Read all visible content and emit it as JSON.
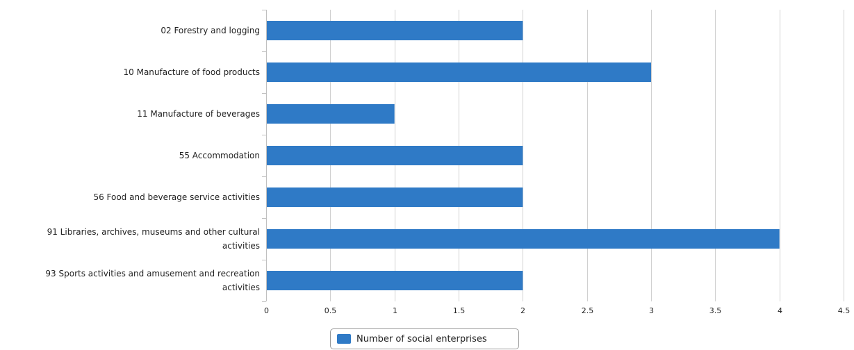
{
  "chart_data": {
    "type": "bar",
    "orientation": "horizontal",
    "categories": [
      "02 Forestry and logging",
      "10 Manufacture of food products",
      "11 Manufacture of beverages",
      "55 Accommodation",
      "56 Food and beverage service activities",
      "91 Libraries, archives, museums and other cultural activities",
      "93 Sports activities and amusement and recreation activities"
    ],
    "category_lines": [
      [
        "02 Forestry and logging"
      ],
      [
        "10 Manufacture of food products"
      ],
      [
        "11 Manufacture of beverages"
      ],
      [
        "55 Accommodation"
      ],
      [
        "56 Food and beverage service activities"
      ],
      [
        "91 Libraries, archives, museums and other cultural",
        "activities"
      ],
      [
        "93 Sports activities and amusement and recreation",
        "activities"
      ]
    ],
    "series": [
      {
        "name": "Number of social enterprises",
        "values": [
          2,
          3,
          1,
          2,
          2,
          4,
          2
        ]
      }
    ],
    "xlim": [
      0,
      4.5
    ],
    "x_ticks": [
      "0",
      "0.5",
      "1",
      "1.5",
      "2",
      "2.5",
      "3",
      "3.5",
      "4",
      "4.5"
    ],
    "grid": "vertical",
    "legend_position": "bottom-center",
    "colors": {
      "bar": "#2f7ac6",
      "grid": "#d0d0d0",
      "axis": "#c0c0c0"
    }
  }
}
